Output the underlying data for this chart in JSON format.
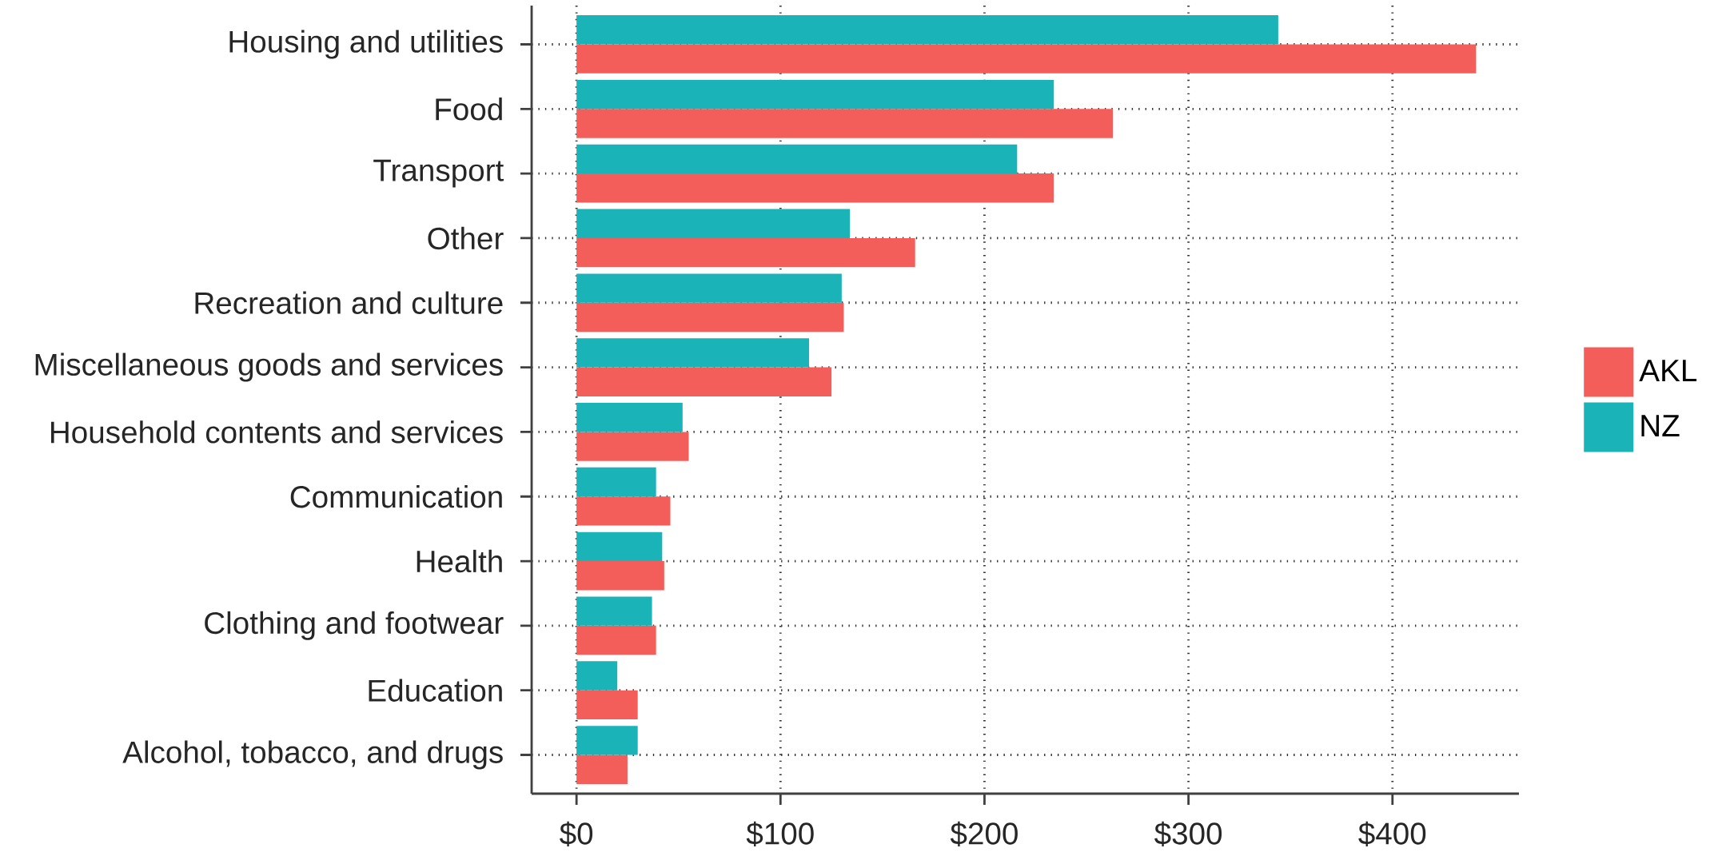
{
  "chart_data": {
    "type": "bar",
    "orientation": "horizontal",
    "categories": [
      "Housing and utilities",
      "Food",
      "Transport",
      "Other",
      "Recreation and culture",
      "Miscellaneous goods and services",
      "Household contents and services",
      "Communication",
      "Health",
      "Clothing and footwear",
      "Education",
      "Alcohol, tobacco, and drugs"
    ],
    "series": [
      {
        "name": "AKL",
        "color": "#f35e5a",
        "values": [
          441,
          263,
          234,
          166,
          131,
          125,
          55,
          46,
          43,
          39,
          30,
          25
        ]
      },
      {
        "name": "NZ",
        "color": "#19b3b8",
        "values": [
          344,
          234,
          216,
          134,
          130,
          114,
          52,
          39,
          42,
          37,
          20,
          30
        ]
      }
    ],
    "xlim": [
      -22,
      462
    ],
    "xticks": [
      {
        "value": 0,
        "label": "$0"
      },
      {
        "value": 100,
        "label": "$100"
      },
      {
        "value": 200,
        "label": "$200"
      },
      {
        "value": 300,
        "label": "$300"
      },
      {
        "value": 400,
        "label": "$400"
      }
    ],
    "grid": true,
    "legend": "right"
  }
}
